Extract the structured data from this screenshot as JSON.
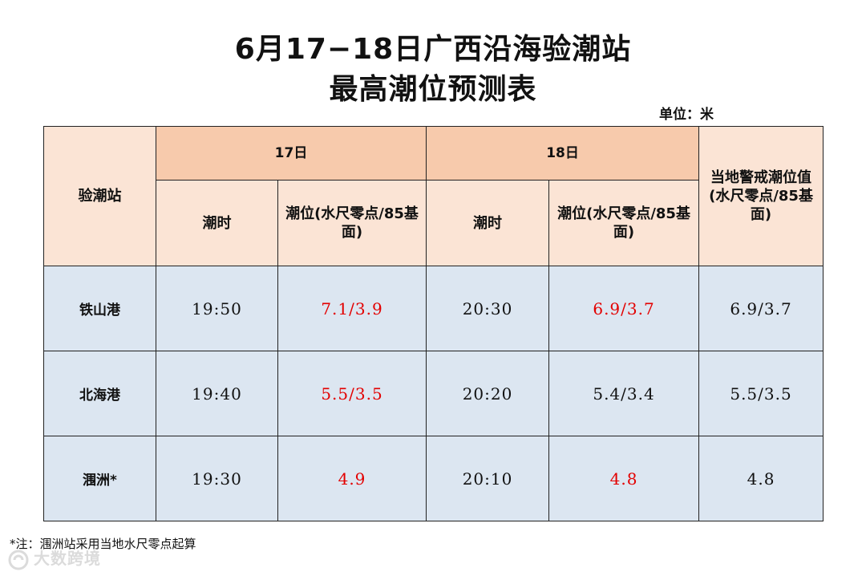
{
  "title": {
    "line1": "6月17−18日广西沿海验潮站",
    "line2": "最高潮位预测表"
  },
  "unit_label": "单位：米",
  "table": {
    "station_header": "验潮站",
    "days": [
      "17日",
      "18日"
    ],
    "sub_headers": {
      "time": "潮时",
      "level": "潮位(水尺零点/85基面)"
    },
    "warning_header": "当地警戒潮位值(水尺零点/85基面)",
    "rows": [
      {
        "station": "铁山港",
        "t17": "19:50",
        "l17": "7.1/3.9",
        "t18": "20:30",
        "l18": "6.9/3.7",
        "warn": "6.9/3.7"
      },
      {
        "station": "北海港",
        "t17": "19:40",
        "l17": "5.5/3.5",
        "t18": "20:20",
        "l18": "5.4/3.4",
        "warn": "5.5/3.5"
      },
      {
        "station": "涠洲*",
        "t17": "19:30",
        "l17": "4.9",
        "t18": "20:10",
        "l18": "4.8",
        "warn": "4.8"
      }
    ],
    "highlight_color": "#e30000"
  },
  "footnote": "*注：涠洲站采用当地水尺零点起算",
  "watermark": "大数跨境"
}
